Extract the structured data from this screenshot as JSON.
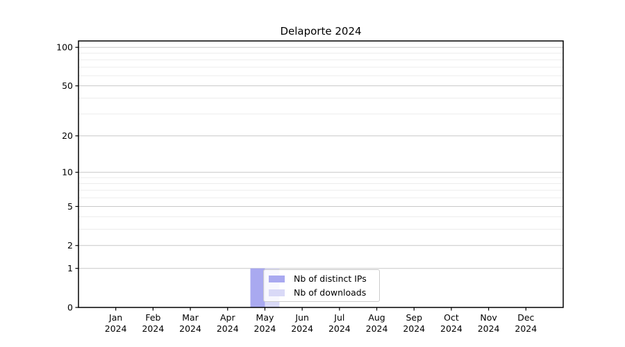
{
  "chart_data": {
    "type": "bar",
    "title": "Delaporte 2024",
    "x_tick_months": [
      "Jan",
      "Feb",
      "Mar",
      "Apr",
      "May",
      "Jun",
      "Jul",
      "Aug",
      "Sep",
      "Oct",
      "Nov",
      "Dec"
    ],
    "x_tick_year": "2024",
    "categories": [
      "Jan 2024",
      "Feb 2024",
      "Mar 2024",
      "Apr 2024",
      "May 2024",
      "Jun 2024",
      "Jul 2024",
      "Aug 2024",
      "Sep 2024",
      "Oct 2024",
      "Nov 2024",
      "Dec 2024"
    ],
    "series": [
      {
        "name": "Nb of distinct IPs",
        "color": "#a9a9f0",
        "values": [
          0,
          0,
          0,
          0,
          1,
          0,
          0,
          0,
          0,
          0,
          0,
          0
        ]
      },
      {
        "name": "Nb of downloads",
        "color": "#d9d9f7",
        "values": [
          0,
          0,
          0,
          0,
          1,
          0,
          0,
          0,
          0,
          0,
          0,
          0
        ]
      }
    ],
    "xlabel": "",
    "ylabel": "",
    "y_scale": "symlog-like: position = log10(1 + y)",
    "y_major_ticks": [
      0,
      1,
      2,
      5,
      10,
      20,
      50,
      100
    ],
    "y_minor_ticks": [
      3,
      4,
      6,
      7,
      8,
      9,
      30,
      40,
      60,
      70,
      80,
      90
    ],
    "ylim": [
      0,
      115
    ],
    "bar_width_fraction": 0.39,
    "grid": {
      "enabled": true,
      "major_color": "#c8c8c8",
      "minor_color": "#ececec"
    },
    "frame_color": "#000000",
    "text_color": "#000000",
    "legend": {
      "position": "inside lower-center",
      "background": "rgba(255,255,255,0.8)",
      "border_color": "#cbcbcb"
    }
  }
}
